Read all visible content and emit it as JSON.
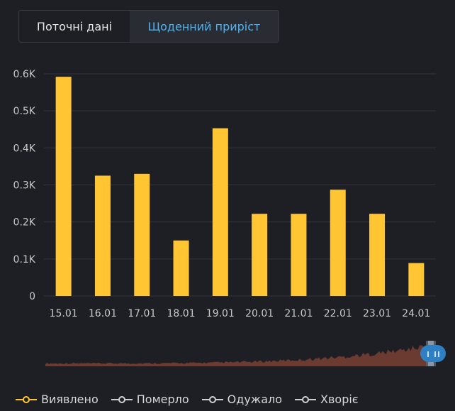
{
  "tabs": [
    {
      "label": "Поточні дані",
      "active": false
    },
    {
      "label": "Щоденний приріст",
      "active": true
    }
  ],
  "colors": {
    "bar": "#ffc533",
    "grid": "#34353d",
    "axis_text": "#c8c8c8",
    "navigator_area": "#6b3a30",
    "navigator_handle": "#2f7fc4",
    "legend_inactive": "#d0d0d0"
  },
  "chart_data": {
    "type": "bar",
    "categories": [
      "15.01",
      "16.01",
      "17.01",
      "18.01",
      "19.01",
      "20.01",
      "21.01",
      "22.01",
      "23.01",
      "24.01"
    ],
    "series": [
      {
        "name": "Виявлено",
        "values": [
          592,
          325,
          330,
          150,
          453,
          222,
          222,
          287,
          222,
          89
        ]
      }
    ],
    "yticks": [
      "0",
      "0.1K",
      "0.2K",
      "0.3K",
      "0.4K",
      "0.5K",
      "0.6K"
    ],
    "ylim": [
      0,
      600
    ],
    "grid": true,
    "legend_position": "bottom-left"
  },
  "navigator": {
    "series": "overview of daily values"
  },
  "legend": [
    {
      "label": "Виявлено",
      "color": "#ffc533",
      "active": true
    },
    {
      "label": "Померло",
      "color": "#d0d0d0",
      "active": false
    },
    {
      "label": "Одужало",
      "color": "#d0d0d0",
      "active": false
    },
    {
      "label": "Хворіє",
      "color": "#d0d0d0",
      "active": false
    }
  ]
}
